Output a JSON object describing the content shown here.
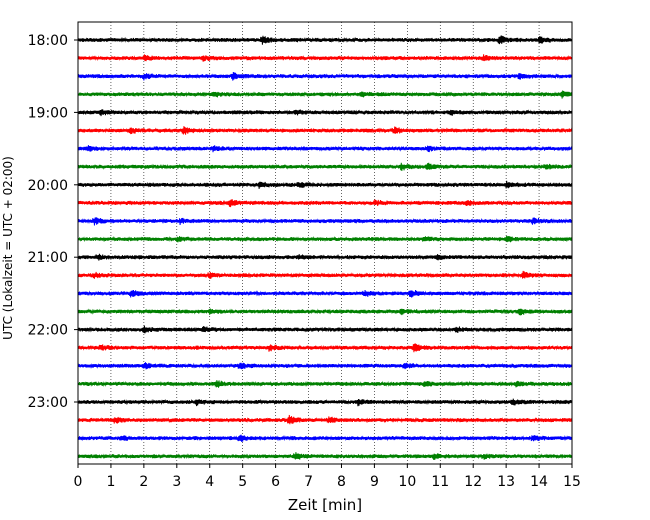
{
  "chart_data": {
    "type": "line",
    "title": "",
    "xlabel": "Zeit  [min]",
    "ylabel": "UTC (Lokalzeit = UTC + 02:00)",
    "xlim": [
      0,
      15
    ],
    "x_ticks": [
      "0",
      "1",
      "2",
      "3",
      "4",
      "5",
      "6",
      "7",
      "8",
      "9",
      "10",
      "11",
      "12",
      "13",
      "14",
      "15"
    ],
    "y_ticks": [
      "18:00",
      "19:00",
      "20:00",
      "21:00",
      "22:00",
      "23:00"
    ],
    "grid": "vertical dotted at each minute",
    "trace_interval_minutes": 15,
    "colors_cycle": [
      "#000000",
      "#ff0000",
      "#0000ff",
      "#008000"
    ],
    "series": [
      {
        "start": "18:00",
        "color": "#000000",
        "events": [
          [
            5.6,
            2.0
          ],
          [
            12.8,
            2.5
          ],
          [
            14.0,
            2.2
          ]
        ]
      },
      {
        "start": "18:15",
        "color": "#ff0000",
        "events": [
          [
            2.0,
            1.3
          ],
          [
            3.8,
            1.2
          ],
          [
            12.3,
            1.4
          ]
        ]
      },
      {
        "start": "18:30",
        "color": "#0000ff",
        "events": [
          [
            2.0,
            1.6
          ],
          [
            4.7,
            1.7
          ],
          [
            13.4,
            1.5
          ]
        ]
      },
      {
        "start": "18:45",
        "color": "#008000",
        "events": [
          [
            4.1,
            1.5
          ],
          [
            8.6,
            1.3
          ],
          [
            14.7,
            1.6
          ]
        ]
      },
      {
        "start": "19:00",
        "color": "#000000",
        "events": [
          [
            0.7,
            1.3
          ],
          [
            6.6,
            1.2
          ],
          [
            11.3,
            1.2
          ]
        ]
      },
      {
        "start": "19:15",
        "color": "#ff0000",
        "events": [
          [
            1.6,
            1.5
          ],
          [
            3.2,
            2.4
          ],
          [
            9.6,
            1.8
          ]
        ]
      },
      {
        "start": "19:30",
        "color": "#0000ff",
        "events": [
          [
            0.3,
            1.3
          ],
          [
            4.1,
            1.2
          ],
          [
            10.6,
            1.3
          ]
        ]
      },
      {
        "start": "19:45",
        "color": "#008000",
        "events": [
          [
            9.8,
            1.9
          ],
          [
            10.6,
            1.6
          ],
          [
            14.2,
            1.4
          ]
        ]
      },
      {
        "start": "20:00",
        "color": "#000000",
        "events": [
          [
            5.5,
            1.4
          ],
          [
            6.7,
            1.3
          ],
          [
            13.0,
            1.5
          ]
        ]
      },
      {
        "start": "20:15",
        "color": "#ff0000",
        "events": [
          [
            4.6,
            2.0
          ],
          [
            9.0,
            1.2
          ],
          [
            11.8,
            1.2
          ]
        ]
      },
      {
        "start": "20:30",
        "color": "#0000ff",
        "events": [
          [
            0.5,
            1.8
          ],
          [
            3.1,
            1.3
          ],
          [
            13.8,
            1.9
          ]
        ]
      },
      {
        "start": "20:45",
        "color": "#008000",
        "events": [
          [
            3.0,
            1.3
          ],
          [
            10.5,
            1.2
          ],
          [
            13.0,
            1.6
          ]
        ]
      },
      {
        "start": "21:00",
        "color": "#000000",
        "events": [
          [
            0.6,
            1.3
          ],
          [
            6.7,
            1.2
          ],
          [
            10.9,
            1.3
          ]
        ]
      },
      {
        "start": "21:15",
        "color": "#ff0000",
        "events": [
          [
            0.5,
            1.3
          ],
          [
            4.0,
            1.2
          ],
          [
            13.5,
            1.8
          ]
        ]
      },
      {
        "start": "21:30",
        "color": "#0000ff",
        "events": [
          [
            1.6,
            1.5
          ],
          [
            8.7,
            1.6
          ],
          [
            10.1,
            1.9
          ]
        ]
      },
      {
        "start": "21:45",
        "color": "#008000",
        "events": [
          [
            4.0,
            1.2
          ],
          [
            9.8,
            1.2
          ],
          [
            13.4,
            1.4
          ]
        ]
      },
      {
        "start": "22:00",
        "color": "#000000",
        "events": [
          [
            2.0,
            1.5
          ],
          [
            3.8,
            1.3
          ],
          [
            11.5,
            1.3
          ]
        ]
      },
      {
        "start": "22:15",
        "color": "#ff0000",
        "events": [
          [
            0.7,
            1.4
          ],
          [
            5.8,
            1.6
          ],
          [
            10.2,
            2.3
          ]
        ]
      },
      {
        "start": "22:30",
        "color": "#0000ff",
        "events": [
          [
            2.0,
            1.7
          ],
          [
            4.9,
            1.5
          ],
          [
            9.9,
            1.3
          ]
        ]
      },
      {
        "start": "22:45",
        "color": "#008000",
        "events": [
          [
            4.2,
            1.6
          ],
          [
            10.5,
            1.5
          ],
          [
            13.3,
            1.4
          ]
        ]
      },
      {
        "start": "23:00",
        "color": "#000000",
        "events": [
          [
            3.6,
            1.3
          ],
          [
            8.5,
            1.7
          ],
          [
            13.2,
            1.3
          ]
        ]
      },
      {
        "start": "23:15",
        "color": "#ff0000",
        "events": [
          [
            1.1,
            1.7
          ],
          [
            6.4,
            2.4
          ],
          [
            7.6,
            1.4
          ]
        ]
      },
      {
        "start": "23:30",
        "color": "#0000ff",
        "events": [
          [
            1.3,
            1.2
          ],
          [
            4.9,
            1.5
          ],
          [
            13.8,
            1.3
          ]
        ]
      },
      {
        "start": "23:45",
        "color": "#008000",
        "events": [
          [
            6.6,
            1.6
          ],
          [
            10.8,
            1.6
          ],
          [
            12.3,
            1.3
          ]
        ]
      }
    ]
  }
}
